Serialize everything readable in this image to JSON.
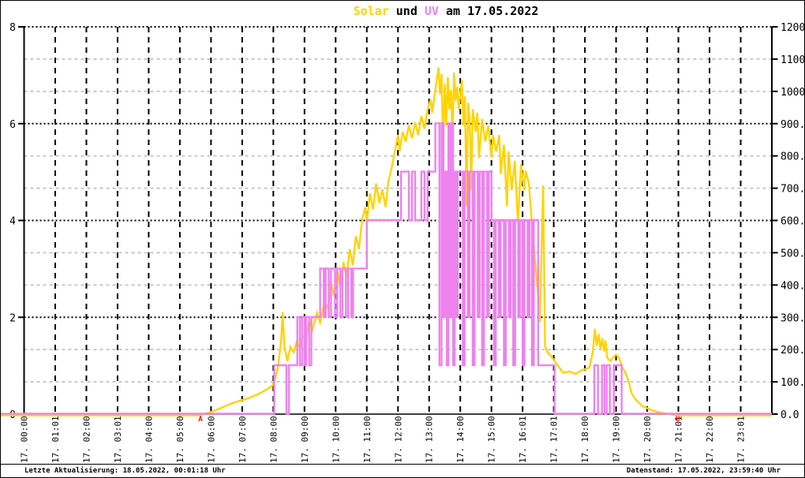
{
  "title": {
    "solar": "Solar",
    "und": " und ",
    "uv": "UV",
    "date": " am 17.05.2022"
  },
  "footer": {
    "left": "Letzte Aktualisierung: 18.05.2022, 00:01:18 Uhr",
    "right": "Datenstand: 17.05.2022, 23:59:40 Uhr"
  },
  "colors": {
    "solar_line": "#ffd300",
    "uv_line": "#ee82ee",
    "grid_major": "#000000",
    "grid_minor": "#c8c8c8",
    "marker_red": "#ff0000"
  },
  "chart_data": {
    "type": "line",
    "title": "Solar und UV am 17.05.2022",
    "grid": "on",
    "x_axis": {
      "unit": "hour",
      "range": [
        0,
        24
      ],
      "tick_labels": [
        "17. 00:00",
        "17. 01:01",
        "17. 02:00",
        "17. 03:01",
        "17. 04:00",
        "17. 05:00",
        "17. 06:00",
        "17. 07:00",
        "17. 08:00",
        "17. 09:00",
        "17. 10:00",
        "17. 11:00",
        "17. 12:00",
        "17. 13:00",
        "17. 14:00",
        "17. 15:00",
        "17. 16:01",
        "17. 17:01",
        "17. 18:00",
        "17. 19:00",
        "17. 20:00",
        "17. 21:01",
        "17. 22:00",
        "17. 23:01"
      ]
    },
    "y_left": {
      "range": [
        0,
        8
      ],
      "ticks": [
        "0",
        "2",
        "4",
        "6",
        "8"
      ]
    },
    "y_right": {
      "range": [
        0,
        1200
      ],
      "ticks": [
        "0.0",
        "100.0",
        "200.0",
        "300.0",
        "400.0",
        "500.0",
        "600.0",
        "700.0",
        "800.0",
        "900.0",
        "1000.0",
        "1100.0",
        "1200.0"
      ]
    },
    "markers": [
      {
        "label": "A",
        "hour": 5.66,
        "color": "#ff0000"
      },
      {
        "label": "U",
        "hour": 20.98,
        "color": "#ff0000"
      }
    ],
    "series": [
      {
        "name": "Solar",
        "axis": "right",
        "style": "line",
        "color": "#ffd300",
        "points": [
          [
            0,
            0
          ],
          [
            5.6,
            0
          ],
          [
            5.75,
            3
          ],
          [
            6.0,
            10
          ],
          [
            6.25,
            20
          ],
          [
            6.5,
            30
          ],
          [
            6.75,
            40
          ],
          [
            7.0,
            47
          ],
          [
            7.25,
            55
          ],
          [
            7.5,
            65
          ],
          [
            7.75,
            78
          ],
          [
            7.95,
            90
          ],
          [
            8.05,
            110
          ],
          [
            8.15,
            150
          ],
          [
            8.25,
            230
          ],
          [
            8.3,
            320
          ],
          [
            8.35,
            215
          ],
          [
            8.45,
            168
          ],
          [
            8.55,
            212
          ],
          [
            8.65,
            195
          ],
          [
            8.75,
            228
          ],
          [
            8.85,
            210
          ],
          [
            8.95,
            248
          ],
          [
            9.05,
            232
          ],
          [
            9.15,
            295
          ],
          [
            9.25,
            265
          ],
          [
            9.4,
            318
          ],
          [
            9.5,
            288
          ],
          [
            9.65,
            355
          ],
          [
            9.75,
            330
          ],
          [
            9.85,
            415
          ],
          [
            9.95,
            368
          ],
          [
            10.05,
            450
          ],
          [
            10.15,
            398
          ],
          [
            10.25,
            475
          ],
          [
            10.35,
            428
          ],
          [
            10.45,
            515
          ],
          [
            10.55,
            465
          ],
          [
            10.65,
            555
          ],
          [
            10.75,
            515
          ],
          [
            10.85,
            605
          ],
          [
            10.95,
            645
          ],
          [
            11.0,
            600
          ],
          [
            11.1,
            688
          ],
          [
            11.2,
            638
          ],
          [
            11.3,
            718
          ],
          [
            11.4,
            658
          ],
          [
            11.5,
            700
          ],
          [
            11.6,
            645
          ],
          [
            11.7,
            728
          ],
          [
            11.8,
            768
          ],
          [
            11.9,
            818
          ],
          [
            12.0,
            868
          ],
          [
            12.05,
            818
          ],
          [
            12.15,
            878
          ],
          [
            12.25,
            848
          ],
          [
            12.35,
            898
          ],
          [
            12.45,
            858
          ],
          [
            12.55,
            908
          ],
          [
            12.65,
            868
          ],
          [
            12.75,
            928
          ],
          [
            12.85,
            888
          ],
          [
            12.95,
            948
          ],
          [
            13.05,
            978
          ],
          [
            13.1,
            938
          ],
          [
            13.2,
            1008
          ],
          [
            13.3,
            1078
          ],
          [
            13.35,
            995
          ],
          [
            13.4,
            1058
          ],
          [
            13.45,
            818
          ],
          [
            13.5,
            1028
          ],
          [
            13.55,
            898
          ],
          [
            13.6,
            1048
          ],
          [
            13.65,
            948
          ],
          [
            13.7,
            1008
          ],
          [
            13.75,
            858
          ],
          [
            13.8,
            1062
          ],
          [
            13.85,
            975
          ],
          [
            13.9,
            1018
          ],
          [
            13.95,
            948
          ],
          [
            14.05,
            1038
          ],
          [
            14.1,
            898
          ],
          [
            14.15,
            988
          ],
          [
            14.2,
            648
          ],
          [
            14.25,
            968
          ],
          [
            14.3,
            918
          ],
          [
            14.35,
            698
          ],
          [
            14.4,
            948
          ],
          [
            14.5,
            878
          ],
          [
            14.55,
            938
          ],
          [
            14.6,
            798
          ],
          [
            14.7,
            918
          ],
          [
            14.8,
            848
          ],
          [
            14.9,
            898
          ],
          [
            15.0,
            798
          ],
          [
            15.05,
            868
          ],
          [
            15.15,
            818
          ],
          [
            15.25,
            868
          ],
          [
            15.3,
            748
          ],
          [
            15.4,
            838
          ],
          [
            15.5,
            648
          ],
          [
            15.55,
            818
          ],
          [
            15.65,
            698
          ],
          [
            15.75,
            788
          ],
          [
            15.85,
            598
          ],
          [
            15.95,
            778
          ],
          [
            16.05,
            698
          ],
          [
            16.1,
            758
          ],
          [
            16.2,
            718
          ],
          [
            16.3,
            598
          ],
          [
            16.4,
            478
          ],
          [
            16.5,
            368
          ],
          [
            16.55,
            288
          ],
          [
            16.62,
            550
          ],
          [
            16.66,
            712
          ],
          [
            16.72,
            215
          ],
          [
            16.8,
            195
          ],
          [
            16.9,
            185
          ],
          [
            17.0,
            172
          ],
          [
            17.1,
            158
          ],
          [
            17.3,
            132
          ],
          [
            17.5,
            136
          ],
          [
            17.7,
            128
          ],
          [
            17.9,
            140
          ],
          [
            18.05,
            144
          ],
          [
            18.15,
            148
          ],
          [
            18.25,
            195
          ],
          [
            18.32,
            268
          ],
          [
            18.38,
            215
          ],
          [
            18.44,
            252
          ],
          [
            18.5,
            205
          ],
          [
            18.56,
            238
          ],
          [
            18.62,
            198
          ],
          [
            18.66,
            232
          ],
          [
            18.72,
            178
          ],
          [
            18.82,
            168
          ],
          [
            18.92,
            180
          ],
          [
            19.0,
            188
          ],
          [
            19.1,
            178
          ],
          [
            19.2,
            148
          ],
          [
            19.3,
            132
          ],
          [
            19.4,
            105
          ],
          [
            19.5,
            68
          ],
          [
            19.6,
            52
          ],
          [
            19.7,
            42
          ],
          [
            19.85,
            28
          ],
          [
            20.0,
            22
          ],
          [
            20.2,
            14
          ],
          [
            20.4,
            9
          ],
          [
            20.6,
            5
          ],
          [
            20.8,
            2
          ],
          [
            21.0,
            0
          ],
          [
            24,
            0
          ]
        ]
      },
      {
        "name": "UV",
        "axis": "left",
        "style": "step",
        "color": "#ee82ee",
        "points": [
          [
            0,
            0
          ],
          [
            8.03,
            1
          ],
          [
            8.42,
            0
          ],
          [
            8.5,
            1
          ],
          [
            8.77,
            2
          ],
          [
            8.85,
            1
          ],
          [
            8.92,
            2
          ],
          [
            9.0,
            1
          ],
          [
            9.05,
            2
          ],
          [
            9.15,
            1
          ],
          [
            9.22,
            2
          ],
          [
            9.5,
            3
          ],
          [
            9.62,
            2
          ],
          [
            9.68,
            3
          ],
          [
            9.78,
            2
          ],
          [
            9.85,
            3
          ],
          [
            9.98,
            2
          ],
          [
            10.05,
            3
          ],
          [
            10.15,
            2
          ],
          [
            10.22,
            3
          ],
          [
            10.33,
            2
          ],
          [
            10.4,
            3
          ],
          [
            10.5,
            2
          ],
          [
            10.56,
            3
          ],
          [
            11.0,
            4
          ],
          [
            12.1,
            5
          ],
          [
            12.35,
            4
          ],
          [
            12.45,
            5
          ],
          [
            12.55,
            4
          ],
          [
            12.75,
            5
          ],
          [
            12.85,
            4
          ],
          [
            12.95,
            5
          ],
          [
            13.2,
            6
          ],
          [
            13.33,
            1
          ],
          [
            13.4,
            6
          ],
          [
            13.46,
            2
          ],
          [
            13.52,
            5
          ],
          [
            13.57,
            1
          ],
          [
            13.62,
            6
          ],
          [
            13.67,
            2
          ],
          [
            13.72,
            6
          ],
          [
            13.77,
            1
          ],
          [
            13.82,
            5
          ],
          [
            13.87,
            2
          ],
          [
            13.92,
            5
          ],
          [
            14.08,
            1
          ],
          [
            14.14,
            5
          ],
          [
            14.24,
            2
          ],
          [
            14.3,
            5
          ],
          [
            14.4,
            1
          ],
          [
            14.46,
            5
          ],
          [
            14.56,
            2
          ],
          [
            14.62,
            5
          ],
          [
            14.7,
            1
          ],
          [
            14.76,
            5
          ],
          [
            14.86,
            2
          ],
          [
            14.92,
            5
          ],
          [
            15.0,
            4
          ],
          [
            15.08,
            1
          ],
          [
            15.14,
            4
          ],
          [
            15.24,
            2
          ],
          [
            15.3,
            4
          ],
          [
            15.4,
            1
          ],
          [
            15.46,
            4
          ],
          [
            15.56,
            2
          ],
          [
            15.62,
            4
          ],
          [
            15.7,
            1
          ],
          [
            15.76,
            4
          ],
          [
            15.86,
            2
          ],
          [
            15.92,
            4
          ],
          [
            16.0,
            1
          ],
          [
            16.06,
            4
          ],
          [
            16.16,
            2
          ],
          [
            16.22,
            4
          ],
          [
            16.3,
            1
          ],
          [
            16.36,
            4
          ],
          [
            16.5,
            1
          ],
          [
            17.03,
            0
          ],
          [
            18.3,
            1
          ],
          [
            18.42,
            0
          ],
          [
            18.55,
            1
          ],
          [
            18.63,
            0
          ],
          [
            18.7,
            1
          ],
          [
            18.8,
            0
          ],
          [
            18.93,
            1
          ],
          [
            19.18,
            0
          ],
          [
            24,
            0
          ]
        ]
      }
    ]
  }
}
